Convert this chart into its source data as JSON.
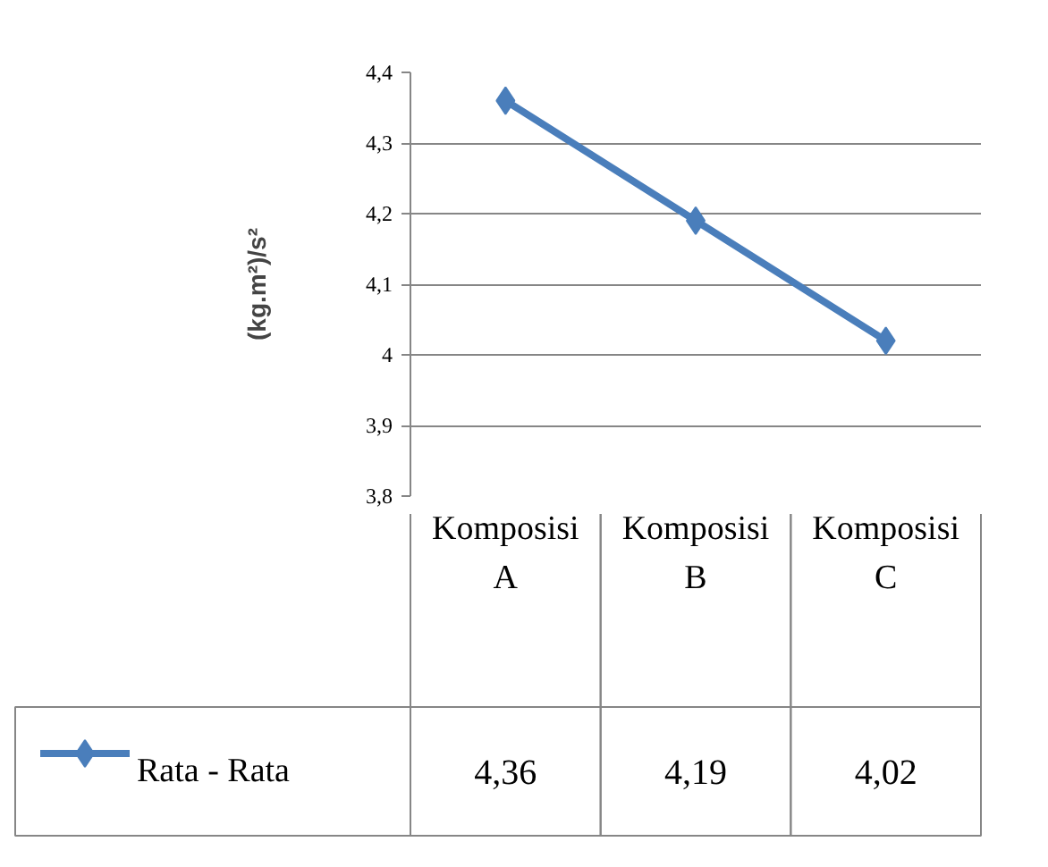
{
  "chart_data": {
    "type": "line",
    "ylabel": "(kg.m²)/s²",
    "categories": [
      "Komposisi A",
      "Komposisi B",
      "Komposisi C"
    ],
    "series": [
      {
        "name": "Rata - Rata",
        "color": "#4a7ebb",
        "values": [
          4.36,
          4.19,
          4.02
        ],
        "value_labels": [
          "4,36",
          "4,19",
          "4,02"
        ]
      }
    ],
    "ylim": [
      3.8,
      4.4
    ],
    "yticks": [
      {
        "value": 3.8,
        "label": "3,8"
      },
      {
        "value": 3.9,
        "label": "3,9"
      },
      {
        "value": 4,
        "label": "4"
      },
      {
        "value": 4.1,
        "label": "4,1"
      },
      {
        "value": 4.2,
        "label": "4,2"
      },
      {
        "value": 4.3,
        "label": "4,3"
      },
      {
        "value": 4.4,
        "label": "4,4"
      }
    ],
    "grid": "y",
    "marker": "diamond",
    "line_style": "solid",
    "legend": "bottom"
  }
}
